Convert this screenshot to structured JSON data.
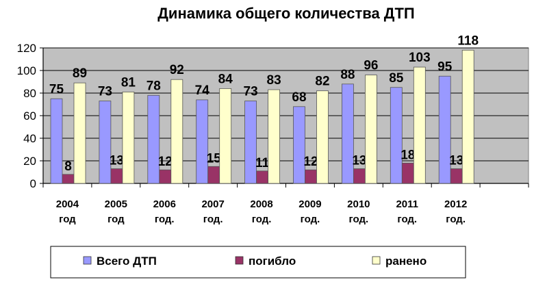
{
  "chart_data": {
    "type": "bar",
    "title": "Динамика общего количества ДТП",
    "xlabel": "",
    "ylabel": "",
    "ylim": [
      0,
      120
    ],
    "yticks": [
      "0",
      "20",
      "40",
      "60",
      "80",
      "100",
      "120"
    ],
    "categories": [
      [
        "2004",
        "год"
      ],
      [
        "2005",
        "год"
      ],
      [
        "2006",
        "год."
      ],
      [
        "2007",
        "год."
      ],
      [
        "2008",
        "год."
      ],
      [
        "2009",
        "год."
      ],
      [
        "2010",
        "год."
      ],
      [
        "2011",
        "год."
      ],
      [
        "2012",
        "год."
      ]
    ],
    "series": [
      {
        "name": "Всего ДТП",
        "color": "#9999ff",
        "values": [
          75,
          73,
          78,
          74,
          73,
          68,
          88,
          85,
          95
        ]
      },
      {
        "name": "погибло",
        "color": "#993366",
        "values": [
          8,
          13,
          12,
          15,
          11,
          12,
          13,
          18,
          13
        ]
      },
      {
        "name": "ранено",
        "color": "#ffffcc",
        "values": [
          89,
          81,
          92,
          84,
          83,
          82,
          96,
          103,
          118
        ]
      }
    ],
    "grid": true,
    "plot_background": "#c0c0c0",
    "legend_position": "bottom"
  }
}
